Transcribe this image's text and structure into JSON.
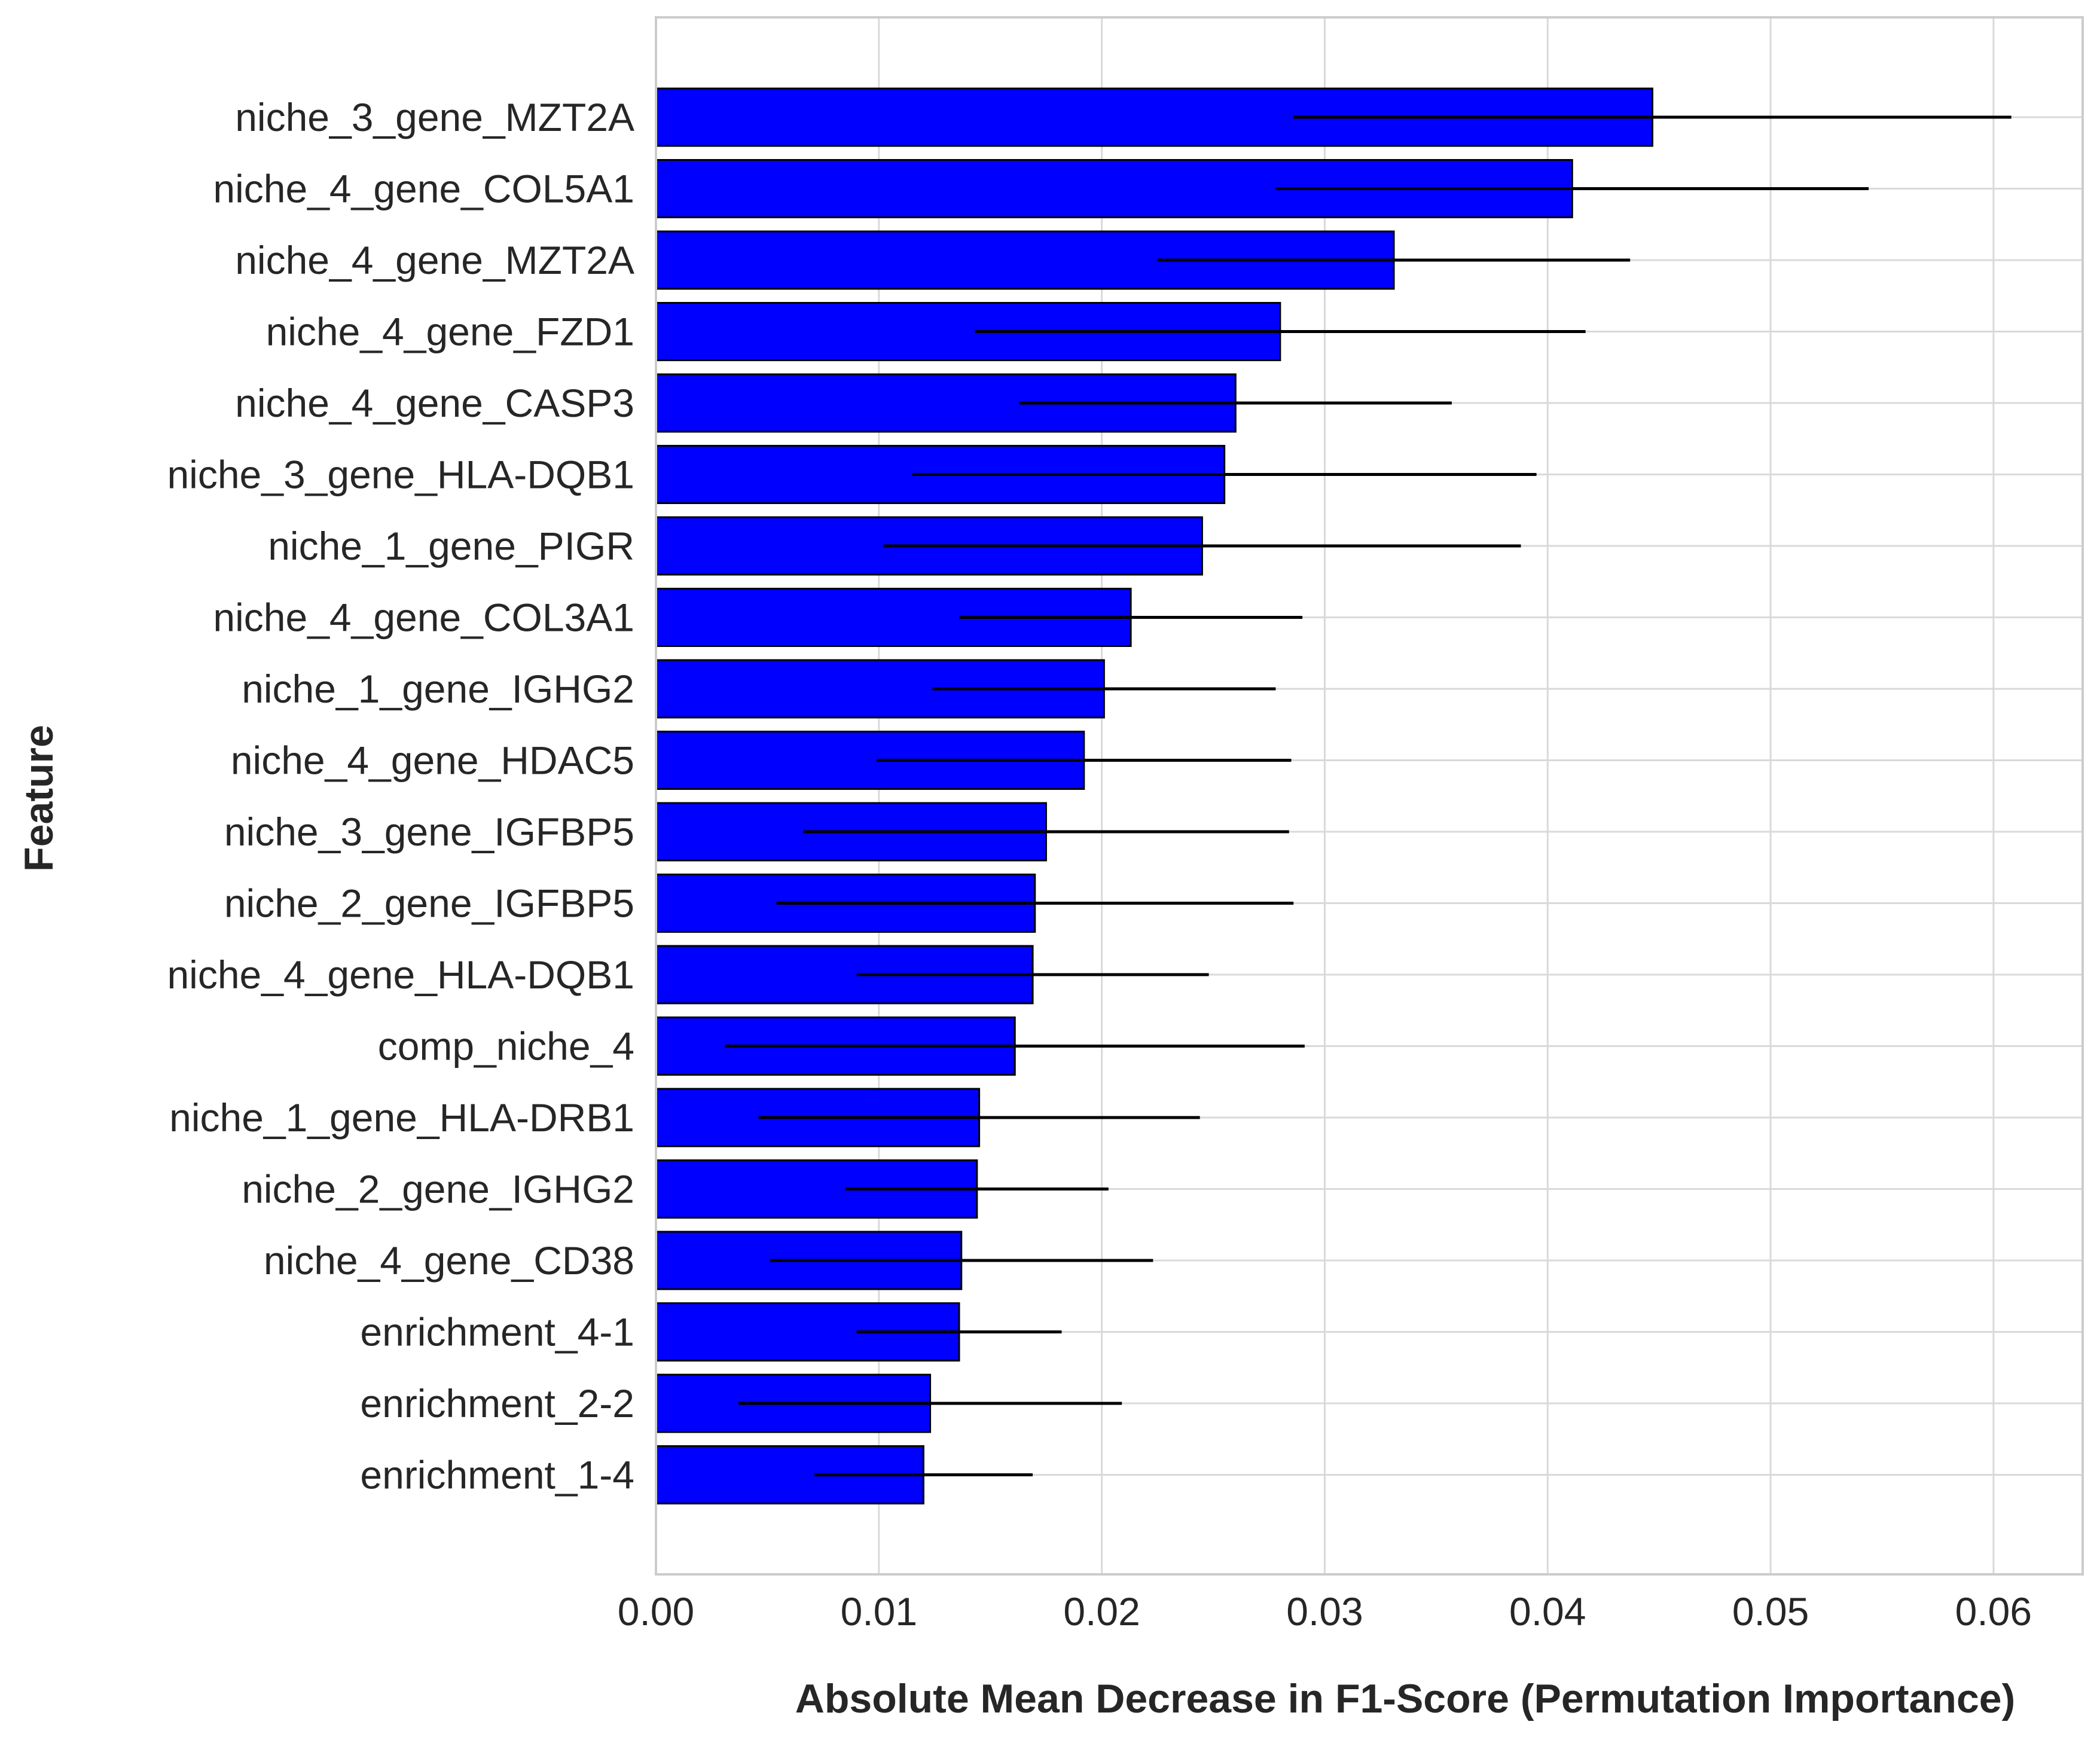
{
  "chart_data": {
    "type": "bar",
    "orientation": "horizontal",
    "xlabel": "Absolute Mean Decrease in F1-Score (Permutation Importance)",
    "ylabel": "Feature",
    "xlim": [
      0,
      0.064
    ],
    "xticks": [
      "0.00",
      "0.01",
      "0.02",
      "0.03",
      "0.04",
      "0.05",
      "0.06"
    ],
    "grid": true,
    "bar_color": "#0000ff",
    "categories": [
      "niche_3_gene_MZT2A",
      "niche_4_gene_COL5A1",
      "niche_4_gene_MZT2A",
      "niche_4_gene_FZD1",
      "niche_4_gene_CASP3",
      "niche_3_gene_HLA-DQB1",
      "niche_1_gene_PIGR",
      "niche_4_gene_COL3A1",
      "niche_1_gene_IGHG2",
      "niche_4_gene_HDAC5",
      "niche_3_gene_IGFBP5",
      "niche_2_gene_IGFBP5",
      "niche_4_gene_HLA-DQB1",
      "comp_niche_4",
      "niche_1_gene_HLA-DRB1",
      "niche_2_gene_IGHG2",
      "niche_4_gene_CD38",
      "enrichment_4-1",
      "enrichment_2-2",
      "enrichment_1-4"
    ],
    "values": [
      0.0447,
      0.0411,
      0.0331,
      0.028,
      0.026,
      0.0255,
      0.0245,
      0.0213,
      0.0201,
      0.0192,
      0.0175,
      0.017,
      0.0169,
      0.0161,
      0.0145,
      0.0144,
      0.0137,
      0.0136,
      0.0123,
      0.012
    ],
    "errors": [
      0.0161,
      0.0133,
      0.0106,
      0.0137,
      0.0097,
      0.014,
      0.0143,
      0.0077,
      0.0077,
      0.0093,
      0.0109,
      0.0116,
      0.0079,
      0.013,
      0.0099,
      0.0059,
      0.0086,
      0.0046,
      0.0086,
      0.0049
    ]
  }
}
